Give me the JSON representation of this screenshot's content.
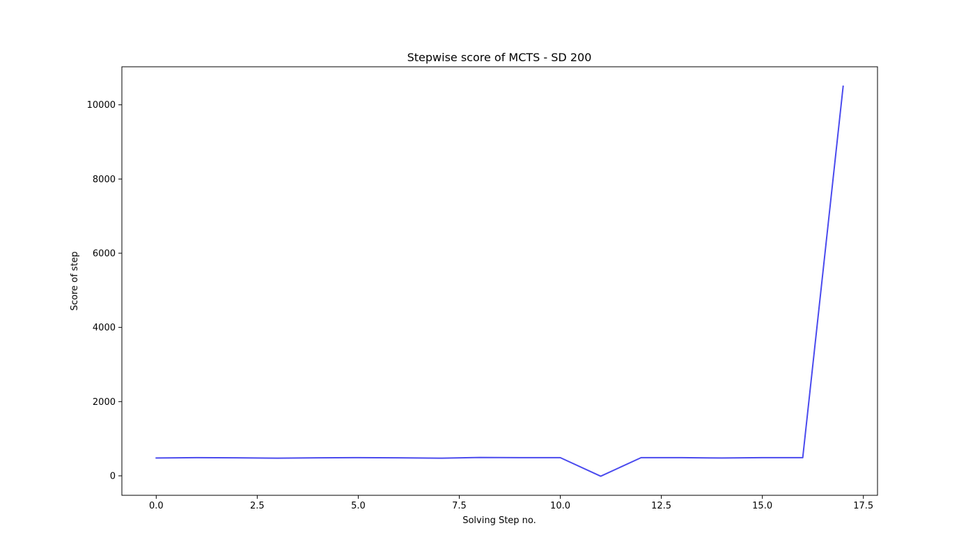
{
  "chart_data": {
    "type": "line",
    "title": "Stepwise score of MCTS - SD 200",
    "xlabel": "Solving Step no.",
    "ylabel": "Score of step",
    "xlim": [
      -0.85,
      17.85
    ],
    "ylim": [
      -525,
      11025
    ],
    "grid": false,
    "x_ticks": [
      0.0,
      2.5,
      5.0,
      7.5,
      10.0,
      12.5,
      15.0,
      17.5
    ],
    "x_tick_labels": [
      "0.0",
      "2.5",
      "5.0",
      "7.5",
      "10.0",
      "12.5",
      "15.0",
      "17.5"
    ],
    "y_ticks": [
      0,
      2000,
      4000,
      6000,
      8000,
      10000
    ],
    "y_tick_labels": [
      "0",
      "2000",
      "4000",
      "6000",
      "8000",
      "10000"
    ],
    "series": [
      {
        "color": "#4a4aee",
        "x": [
          0,
          1,
          2,
          3,
          4,
          5,
          6,
          7,
          8,
          9,
          10,
          11,
          12,
          13,
          14,
          15,
          16,
          17
        ],
        "values": [
          480,
          490,
          485,
          475,
          485,
          490,
          485,
          475,
          495,
          490,
          490,
          -10,
          490,
          490,
          480,
          490,
          490,
          10500
        ]
      }
    ]
  }
}
